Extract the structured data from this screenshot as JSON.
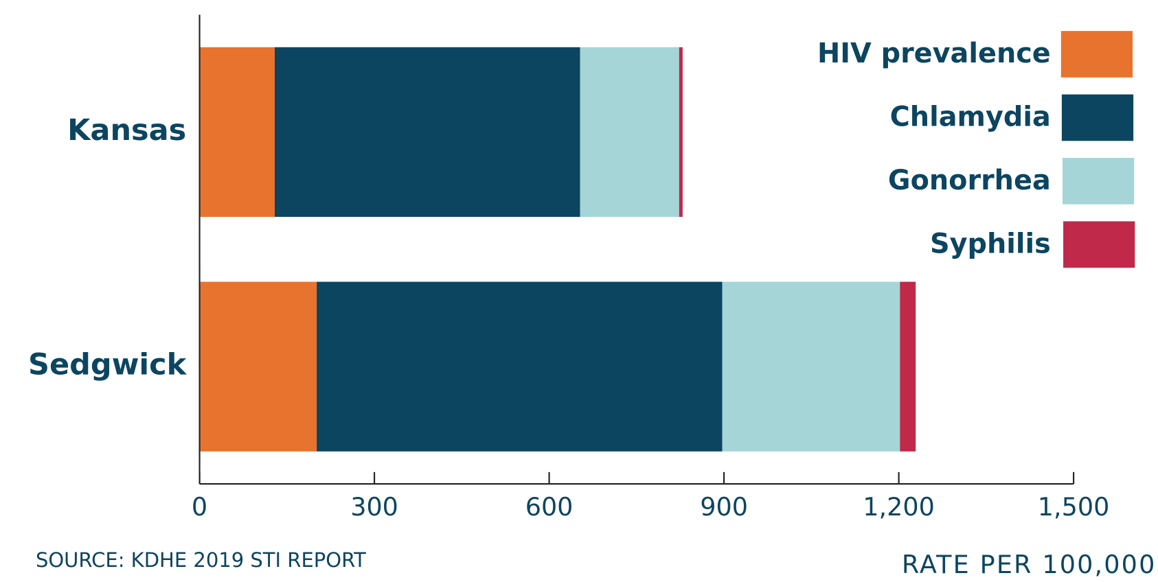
{
  "chart_data": {
    "type": "stacked-bar-horizontal",
    "categories": [
      "Kansas",
      "Sedgwick"
    ],
    "series": [
      {
        "name": "HIV prevalence",
        "color": "#e8732e",
        "values": [
          129,
          201
        ]
      },
      {
        "name": "Chlamydia",
        "color": "#0c4560",
        "values": [
          524,
          696
        ]
      },
      {
        "name": "Gonorrhea",
        "color": "#a5d5d7",
        "values": [
          170,
          305
        ]
      },
      {
        "name": "Syphilis",
        "color": "#c0294a",
        "values": [
          6,
          27
        ]
      }
    ],
    "xlim": [
      0,
      1500
    ],
    "xticks": [
      0,
      300,
      600,
      900,
      {
        "value": 1200,
        "label": "1,200"
      },
      {
        "value": 1500,
        "label": "1,500"
      }
    ],
    "x_label": "RATE PER 100,000",
    "source": "SOURCE: KDHE 2019 STI REPORT",
    "legend": "top-right"
  }
}
